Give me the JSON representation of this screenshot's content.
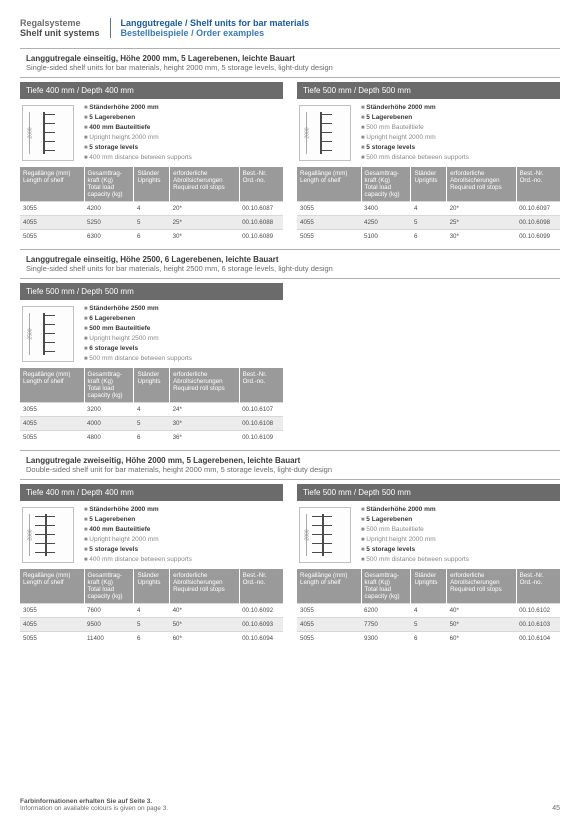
{
  "header": {
    "left_de": "Regalsysteme",
    "left_en": "Shelf unit systems",
    "right_de": "Langgutregale / Shelf units for bar materials",
    "right_en": "Bestellbeispiele / Order examples"
  },
  "sections": [
    {
      "title_de": "Langgutregale einseitig, Höhe 2000 mm, 5 Lagerebenen, leichte Bauart",
      "title_en": "Single-sided shelf units for bar materials, height 2000 mm, 5 storage levels, light-duty design",
      "panels": [
        {
          "depth_label": "Tiefe 400 mm / Depth 400 mm",
          "height_label": "2000",
          "bullets": [
            {
              "de": "Ständerhöhe 2000 mm",
              "en": "",
              "bold": true
            },
            {
              "de": "5 Lagerebenen",
              "en": "",
              "bold": true
            },
            {
              "de": "400 mm Bauteiltiefe",
              "en": "",
              "bold": true
            },
            {
              "de": "Upright height 2000 mm",
              "en": "",
              "bold": false,
              "soft": true
            },
            {
              "de": "5 storage levels",
              "en": "",
              "bold": true
            },
            {
              "de": "400 mm distance between supports",
              "en": "",
              "bold": false,
              "soft": true
            }
          ],
          "rows": [
            {
              "len": "3055",
              "load": "4200",
              "upr": "4",
              "stops": "20*",
              "ord": "00.10.6087"
            },
            {
              "len": "4055",
              "load": "5250",
              "upr": "5",
              "stops": "25*",
              "ord": "00.10.6088"
            },
            {
              "len": "5055",
              "load": "6300",
              "upr": "6",
              "stops": "30*",
              "ord": "00.10.6089"
            }
          ]
        },
        {
          "depth_label": "Tiefe 500 mm / Depth 500 mm",
          "height_label": "2000",
          "bullets": [
            {
              "de": "Ständerhöhe 2000 mm",
              "bold": true
            },
            {
              "de": "5 Lagerebenen",
              "bold": true
            },
            {
              "de": "500 mm Bauteiltiefe",
              "bold": false,
              "soft": true
            },
            {
              "de": "Upright height 2000 mm",
              "bold": false,
              "soft": true
            },
            {
              "de": "5 storage levels",
              "bold": true
            },
            {
              "de": "500 mm distance between supports",
              "bold": false,
              "soft": true
            }
          ],
          "rows": [
            {
              "len": "3055",
              "load": "3400",
              "upr": "4",
              "stops": "20*",
              "ord": "00.10.6097"
            },
            {
              "len": "4055",
              "load": "4250",
              "upr": "5",
              "stops": "25*",
              "ord": "00.10.6098"
            },
            {
              "len": "5055",
              "load": "5100",
              "upr": "6",
              "stops": "30*",
              "ord": "00.10.6099"
            }
          ]
        }
      ]
    },
    {
      "title_de": "Langgutregale einseitig, Höhe 2500, 6 Lagerebenen, leichte Bauart",
      "title_en": "Single-sided shelf units for bar materials, height 2500 mm, 6 storage levels, light-duty design",
      "panels": [
        {
          "depth_label": "Tiefe 500 mm / Depth 500 mm",
          "height_label": "2500",
          "bullets": [
            {
              "de": "Ständerhöhe 2500 mm",
              "bold": true
            },
            {
              "de": "6 Lagerebenen",
              "bold": true
            },
            {
              "de": "500 mm Bauteiltiefe",
              "bold": true
            },
            {
              "de": "Upright height 2500 mm",
              "bold": false,
              "soft": true
            },
            {
              "de": "6 storage levels",
              "bold": true
            },
            {
              "de": "500 mm distance between supports",
              "bold": false,
              "soft": true
            }
          ],
          "rows": [
            {
              "len": "3055",
              "load": "3200",
              "upr": "4",
              "stops": "24*",
              "ord": "00.10.6107"
            },
            {
              "len": "4055",
              "load": "4000",
              "upr": "5",
              "stops": "30*",
              "ord": "00.10.6108"
            },
            {
              "len": "5055",
              "load": "4800",
              "upr": "6",
              "stops": "36*",
              "ord": "00.10.6109"
            }
          ]
        }
      ]
    },
    {
      "title_de": "Langgutregale zweiseitig, Höhe 2000 mm, 5 Lagerebenen, leichte Bauart",
      "title_en": "Double-sided shelf unit for bar materials, height 2000 mm, 5 storage levels, light-duty design",
      "double": true,
      "panels": [
        {
          "depth_label": "Tiefe 400 mm / Depth 400 mm",
          "height_label": "2000",
          "bullets": [
            {
              "de": "Ständerhöhe 2000 mm",
              "bold": true
            },
            {
              "de": "5 Lagerebenen",
              "bold": true
            },
            {
              "de": "400 mm Bauteiltiefe",
              "bold": true
            },
            {
              "de": "Upright height 2000 mm",
              "bold": false,
              "soft": true
            },
            {
              "de": "5 storage levels",
              "bold": true
            },
            {
              "de": "400 mm distance between supports",
              "bold": false,
              "soft": true
            }
          ],
          "rows": [
            {
              "len": "3055",
              "load": "7600",
              "upr": "4",
              "stops": "40*",
              "ord": "00.10.6092"
            },
            {
              "len": "4055",
              "load": "9500",
              "upr": "5",
              "stops": "50*",
              "ord": "00.10.6093"
            },
            {
              "len": "5055",
              "load": "11400",
              "upr": "6",
              "stops": "60*",
              "ord": "00.10.6094"
            }
          ]
        },
        {
          "depth_label": "Tiefe 500 mm / Depth 500 mm",
          "height_label": "2000",
          "bullets": [
            {
              "de": "Ständerhöhe 2000 mm",
              "bold": true
            },
            {
              "de": "5 Lagerebenen",
              "bold": true
            },
            {
              "de": "500 mm Bauteiltiefe",
              "bold": false,
              "soft": true
            },
            {
              "de": "Upright height 2000 mm",
              "bold": false,
              "soft": true
            },
            {
              "de": "5 storage levels",
              "bold": true
            },
            {
              "de": "500 mm distance between supports",
              "bold": false,
              "soft": true
            }
          ],
          "rows": [
            {
              "len": "3055",
              "load": "6200",
              "upr": "4",
              "stops": "40*",
              "ord": "00.10.6102"
            },
            {
              "len": "4055",
              "load": "7750",
              "upr": "5",
              "stops": "50*",
              "ord": "00.10.6103"
            },
            {
              "len": "5055",
              "load": "9300",
              "upr": "6",
              "stops": "60*",
              "ord": "00.10.6104"
            }
          ]
        }
      ]
    }
  ],
  "table_headers": {
    "len": "Regallänge (mm)\nLength of shelf",
    "load": "Gesamttrag-\nkraft (Kg)\nTotal load\ncapacity (kg)",
    "upr": "Ständer\nUprights",
    "stops": "erforderliche\nAbrollsicherungen\nRequired roll stops",
    "ord": "Best.-Nr.\nOrd.-no."
  },
  "footer": {
    "note_de": "Farbinformationen erhalten Sie auf Seite 3.",
    "note_en": "Information on available colours is given on page 3.",
    "page": "45"
  },
  "colors": {
    "header_gray": "#6b6b6b",
    "header_blue": "#1a5a9a",
    "table_header": "#9a9a9a",
    "alt_row": "#ececec"
  }
}
